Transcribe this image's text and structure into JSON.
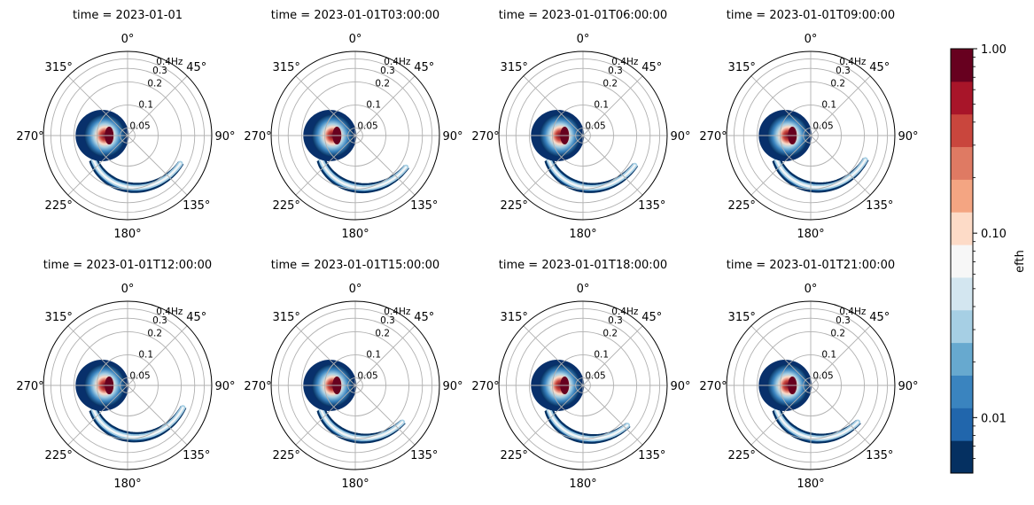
{
  "chart_data": {
    "type": "polar_spectrum_small_multiples",
    "panels": [
      {
        "title": "time = 2023-01-01",
        "lobe_direction_deg": 118,
        "lobe_extent_deg": 110
      },
      {
        "title": "time = 2023-01-01T03:00:00",
        "lobe_direction_deg": 122,
        "lobe_extent_deg": 112
      },
      {
        "title": "time = 2023-01-01T06:00:00",
        "lobe_direction_deg": 120,
        "lobe_extent_deg": 112
      },
      {
        "title": "time = 2023-01-01T09:00:00",
        "lobe_direction_deg": 114,
        "lobe_extent_deg": 118
      },
      {
        "title": "time = 2023-01-01T12:00:00",
        "lobe_direction_deg": 112,
        "lobe_extent_deg": 118
      },
      {
        "title": "time = 2023-01-01T15:00:00",
        "lobe_direction_deg": 128,
        "lobe_extent_deg": 100
      },
      {
        "title": "time = 2023-01-01T18:00:00",
        "lobe_direction_deg": 132,
        "lobe_extent_deg": 100
      },
      {
        "title": "time = 2023-01-01T21:00:00",
        "lobe_direction_deg": 128,
        "lobe_extent_deg": 105
      }
    ],
    "main_peak": {
      "direction_deg": 270,
      "frequency_hz": 0.1
    },
    "angular_axis": {
      "labels": [
        "0°",
        "45°",
        "90°",
        "135°",
        "180°",
        "225°",
        "270°",
        "315°"
      ],
      "angles_deg": [
        0,
        45,
        90,
        135,
        180,
        225,
        270,
        315
      ],
      "zero_location": "N",
      "direction": "clockwise"
    },
    "radial_axis": {
      "ticks": [
        0.05,
        0.1,
        0.2,
        0.3,
        0.4
      ],
      "tick_labels": [
        "0.05",
        "0.1",
        "0.2",
        "0.3",
        "0.4Hz"
      ],
      "scale": "log",
      "range": [
        0.04,
        0.5
      ],
      "label_angle_deg": 22.5
    },
    "grid": true,
    "colorbar": {
      "label": "efth",
      "scale": "log",
      "range": [
        0.005,
        1.0
      ],
      "tick_values": [
        0.01,
        0.1,
        1.0
      ],
      "tick_labels": [
        "0.01",
        "0.10",
        "1.00"
      ],
      "colors": [
        "#053061",
        "#2166ac",
        "#3a84bf",
        "#67a9cf",
        "#a6cfe4",
        "#d3e6f0",
        "#f7f7f7",
        "#fddbc7",
        "#f4a582",
        "#df7a63",
        "#c9463d",
        "#a81529",
        "#67001f"
      ],
      "placement": "right"
    }
  }
}
